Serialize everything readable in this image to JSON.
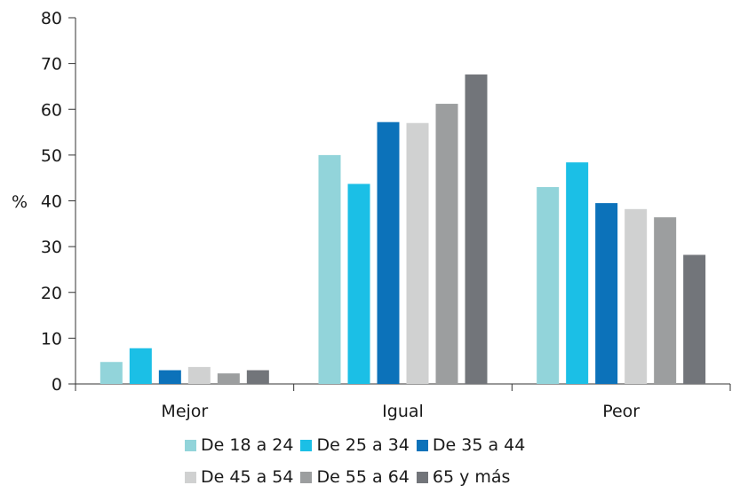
{
  "chart_data": {
    "type": "bar",
    "title": "",
    "xlabel": "",
    "ylabel": "%",
    "ylim": [
      0,
      80
    ],
    "yticks": [
      0,
      10,
      20,
      30,
      40,
      50,
      60,
      70,
      80
    ],
    "grid": false,
    "legend_position": "bottom",
    "categories": [
      "Mejor",
      "Igual",
      "Peor"
    ],
    "series": [
      {
        "name": "De 18 a 24",
        "color": "#92d4da",
        "values": [
          4.8,
          50.0,
          43.0
        ]
      },
      {
        "name": "De 25 a 34",
        "color": "#1bbfe6",
        "values": [
          7.8,
          43.7,
          48.4
        ]
      },
      {
        "name": "De 35 a 44",
        "color": "#0c72ba",
        "values": [
          3.0,
          57.2,
          39.5
        ]
      },
      {
        "name": "De 45 a 54",
        "color": "#d0d1d1",
        "values": [
          3.7,
          57.0,
          38.2
        ]
      },
      {
        "name": "De 55 a 64",
        "color": "#9c9e9f",
        "values": [
          2.3,
          61.2,
          36.4
        ]
      },
      {
        "name": "65 y más",
        "color": "#72757a",
        "values": [
          3.0,
          67.6,
          28.2
        ]
      }
    ]
  }
}
